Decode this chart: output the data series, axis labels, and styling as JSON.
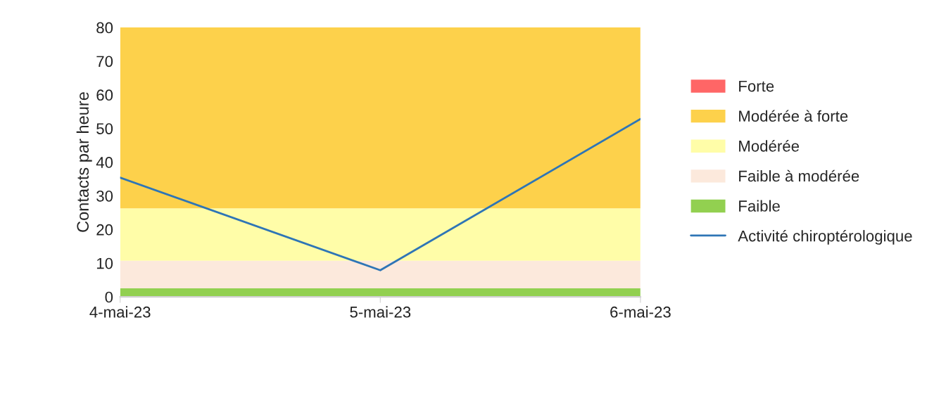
{
  "chart_data": {
    "type": "area",
    "stacked": true,
    "ylabel": "Contacts par heure",
    "categories": [
      "4-mai-23",
      "5-mai-23",
      "6-mai-23"
    ],
    "series": [
      {
        "name": "Faible",
        "color": "#92d050",
        "values": [
          2.5,
          2.5,
          2.5
        ]
      },
      {
        "name": "Faible à modérée",
        "color": "#fce9dc",
        "values": [
          8.2,
          8.2,
          8.2
        ]
      },
      {
        "name": "Modérée",
        "color": "#fffda8",
        "values": [
          15.6,
          15.6,
          15.6
        ]
      },
      {
        "name": "Modérée à forte",
        "color": "#fdd14b",
        "values": [
          53.7,
          53.7,
          53.7
        ]
      },
      {
        "name": "Forte",
        "color": "#ff6666",
        "values": [
          null,
          null,
          null
        ]
      },
      {
        "name": "Activité chiroptérologique",
        "type": "line",
        "color": "#2e75b6",
        "values": [
          35.4,
          7.9,
          52.8
        ]
      }
    ],
    "ylim": [
      0,
      80
    ],
    "yticks": [
      0,
      10,
      20,
      30,
      40,
      50,
      60,
      70,
      80
    ],
    "grid": false,
    "legend": "right"
  }
}
